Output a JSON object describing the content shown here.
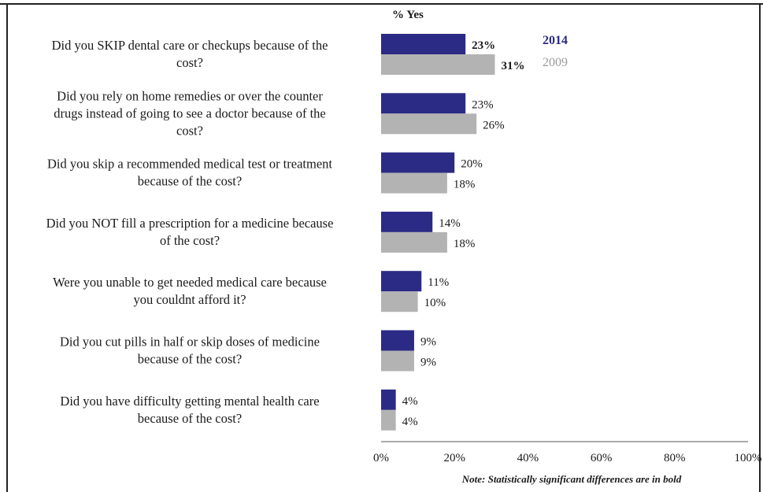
{
  "chart_data": {
    "type": "bar",
    "orientation": "horizontal",
    "title": "% Yes",
    "categories": [
      [
        "Did you SKIP dental care or checkups because of the",
        "cost?"
      ],
      [
        "Did you rely on home remedies or over the counter",
        "drugs instead of going to see a doctor because of the",
        "cost?"
      ],
      [
        "Did you skip a recommended medical test or treatment",
        "because of the cost?"
      ],
      [
        "Did you NOT fill a prescription for a medicine because",
        "of the cost?"
      ],
      [
        "Were you unable to get needed medical care because",
        "you couldnt afford it?"
      ],
      [
        "Did you cut pills in half or skip doses of medicine",
        "because of the cost?"
      ],
      [
        "Did you have difficulty getting mental health care",
        "because of the cost?"
      ]
    ],
    "series": [
      {
        "name": "2014",
        "color": "#2b2a85",
        "values": [
          23,
          23,
          20,
          14,
          11,
          9,
          4
        ],
        "labels": [
          "23%",
          "23%",
          "20%",
          "14%",
          "11%",
          "9%",
          "4%"
        ],
        "bold": [
          true,
          false,
          false,
          false,
          false,
          false,
          false
        ]
      },
      {
        "name": "2009",
        "color": "#b3b3b3",
        "values": [
          31,
          26,
          18,
          18,
          10,
          9,
          4
        ],
        "labels": [
          "31%",
          "26%",
          "18%",
          "18%",
          "10%",
          "9%",
          "4%"
        ],
        "bold": [
          true,
          false,
          false,
          false,
          false,
          false,
          false
        ]
      }
    ],
    "xlim": [
      0,
      100
    ],
    "xticks": [
      "0%",
      "20%",
      "40%",
      "60%",
      "80%",
      "100%"
    ],
    "xtick_values": [
      0,
      20,
      40,
      60,
      80,
      100
    ],
    "legend": [
      {
        "label": "2014",
        "color": "#2b2a85"
      },
      {
        "label": "2009",
        "color": "#9a9a9a"
      }
    ],
    "legend_placement": "top-right",
    "grid": false,
    "note": "Note: Statistically significant differences are in bold"
  }
}
